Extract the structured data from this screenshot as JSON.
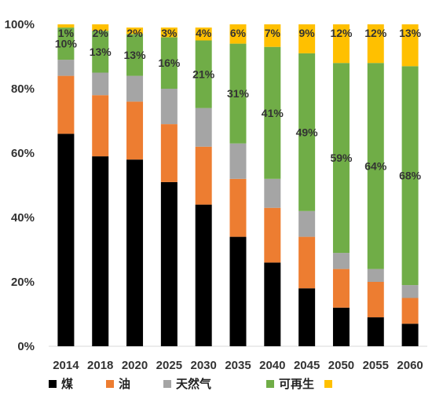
{
  "chart_data": {
    "type": "bar",
    "stacked": true,
    "categories": [
      "2014",
      "2018",
      "2020",
      "2025",
      "2030",
      "2035",
      "2040",
      "2045",
      "2050",
      "2055",
      "2060"
    ],
    "ylim": [
      0,
      100
    ],
    "yticks": [
      "0%",
      "20%",
      "40%",
      "60%",
      "80%",
      "100%"
    ],
    "grid": false,
    "legend_position": "bottom",
    "series": [
      {
        "name": "煤",
        "color": "#000000",
        "values": [
          66,
          59,
          58,
          51,
          44,
          34,
          26,
          18,
          12,
          9,
          7
        ]
      },
      {
        "name": "油",
        "color": "#ED7D31",
        "values": [
          18,
          19,
          18,
          18,
          18,
          18,
          17,
          16,
          12,
          11,
          8
        ]
      },
      {
        "name": "天然气",
        "color": "#A5A5A5",
        "values": [
          5,
          7,
          8,
          11,
          12,
          11,
          9,
          8,
          5,
          4,
          4
        ]
      },
      {
        "name": "可再生",
        "color": "#70AD47",
        "values": [
          10,
          13,
          13,
          16,
          21,
          31,
          41,
          49,
          59,
          64,
          68
        ]
      },
      {
        "name": "",
        "color": "#FFC000",
        "values": [
          1,
          2,
          2,
          3,
          4,
          6,
          7,
          9,
          12,
          12,
          13
        ]
      }
    ],
    "data_labels": {
      "renewable": [
        "10%",
        "13%",
        "13%",
        "16%",
        "21%",
        "31%",
        "41%",
        "49%",
        "59%",
        "64%",
        "68%"
      ],
      "top": [
        "1%",
        "2%",
        "2%",
        "3%",
        "4%",
        "6%",
        "7%",
        "9%",
        "12%",
        "12%",
        "13%"
      ]
    }
  }
}
